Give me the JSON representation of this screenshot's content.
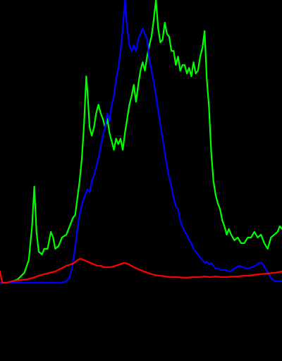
{
  "chart_data": {
    "type": "line",
    "title": "",
    "xlabel": "",
    "ylabel": "",
    "grid": false,
    "legend": "none",
    "background": "#000000",
    "xlim": [
      0,
      255
    ],
    "ylim": [
      0,
      1
    ],
    "series": [
      {
        "color": "#00ff00",
        "points": [
          [
            0,
            0.0
          ],
          [
            8,
            0.0
          ],
          [
            16,
            0.012
          ],
          [
            22,
            0.035
          ],
          [
            26,
            0.08
          ],
          [
            29,
            0.2
          ],
          [
            31,
            0.34
          ],
          [
            33,
            0.18
          ],
          [
            35,
            0.11
          ],
          [
            38,
            0.1
          ],
          [
            40,
            0.12
          ],
          [
            43,
            0.12
          ],
          [
            46,
            0.18
          ],
          [
            48,
            0.16
          ],
          [
            50,
            0.12
          ],
          [
            53,
            0.13
          ],
          [
            56,
            0.16
          ],
          [
            60,
            0.17
          ],
          [
            63,
            0.2
          ],
          [
            66,
            0.23
          ],
          [
            68,
            0.24
          ],
          [
            70,
            0.3
          ],
          [
            72,
            0.36
          ],
          [
            74,
            0.44
          ],
          [
            76,
            0.56
          ],
          [
            78,
            0.73
          ],
          [
            79,
            0.68
          ],
          [
            81,
            0.55
          ],
          [
            83,
            0.52
          ],
          [
            85,
            0.55
          ],
          [
            87,
            0.6
          ],
          [
            89,
            0.63
          ],
          [
            91,
            0.6
          ],
          [
            93,
            0.58
          ],
          [
            95,
            0.55
          ],
          [
            97,
            0.58
          ],
          [
            99,
            0.53
          ],
          [
            101,
            0.5
          ],
          [
            103,
            0.47
          ],
          [
            105,
            0.51
          ],
          [
            107,
            0.49
          ],
          [
            109,
            0.51
          ],
          [
            111,
            0.47
          ],
          [
            113,
            0.53
          ],
          [
            115,
            0.58
          ],
          [
            117,
            0.63
          ],
          [
            119,
            0.66
          ],
          [
            121,
            0.7
          ],
          [
            123,
            0.64
          ],
          [
            125,
            0.7
          ],
          [
            127,
            0.75
          ],
          [
            129,
            0.78
          ],
          [
            131,
            0.75
          ],
          [
            133,
            0.8
          ],
          [
            135,
            0.84
          ],
          [
            137,
            0.87
          ],
          [
            139,
            0.93
          ],
          [
            141,
            1.0
          ],
          [
            143,
            0.9
          ],
          [
            145,
            0.85
          ],
          [
            147,
            0.86
          ],
          [
            149,
            0.92
          ],
          [
            151,
            0.88
          ],
          [
            153,
            0.87
          ],
          [
            155,
            0.82
          ],
          [
            157,
            0.82
          ],
          [
            159,
            0.77
          ],
          [
            161,
            0.8
          ],
          [
            163,
            0.75
          ],
          [
            165,
            0.77
          ],
          [
            167,
            0.77
          ],
          [
            169,
            0.74
          ],
          [
            171,
            0.76
          ],
          [
            173,
            0.73
          ],
          [
            175,
            0.78
          ],
          [
            177,
            0.74
          ],
          [
            179,
            0.75
          ],
          [
            181,
            0.8
          ],
          [
            183,
            0.83
          ],
          [
            185,
            0.89
          ],
          [
            187,
            0.72
          ],
          [
            189,
            0.62
          ],
          [
            191,
            0.46
          ],
          [
            193,
            0.36
          ],
          [
            195,
            0.31
          ],
          [
            197,
            0.28
          ],
          [
            199,
            0.26
          ],
          [
            201,
            0.22
          ],
          [
            203,
            0.2
          ],
          [
            205,
            0.17
          ],
          [
            207,
            0.19
          ],
          [
            209,
            0.17
          ],
          [
            212,
            0.15
          ],
          [
            215,
            0.16
          ],
          [
            218,
            0.14
          ],
          [
            221,
            0.14
          ],
          [
            224,
            0.16
          ],
          [
            227,
            0.16
          ],
          [
            230,
            0.18
          ],
          [
            233,
            0.16
          ],
          [
            236,
            0.17
          ],
          [
            239,
            0.14
          ],
          [
            242,
            0.12
          ],
          [
            245,
            0.16
          ],
          [
            248,
            0.17
          ],
          [
            251,
            0.18
          ],
          [
            253,
            0.2
          ],
          [
            255,
            0.19
          ]
        ]
      },
      {
        "color": "#0000ff",
        "points": [
          [
            0,
            0.0
          ],
          [
            20,
            0.0
          ],
          [
            40,
            0.0
          ],
          [
            55,
            0.0
          ],
          [
            60,
            0.005
          ],
          [
            63,
            0.02
          ],
          [
            65,
            0.05
          ],
          [
            67,
            0.1
          ],
          [
            69,
            0.16
          ],
          [
            71,
            0.22
          ],
          [
            73,
            0.26
          ],
          [
            75,
            0.29
          ],
          [
            77,
            0.31
          ],
          [
            79,
            0.33
          ],
          [
            81,
            0.32
          ],
          [
            83,
            0.36
          ],
          [
            85,
            0.38
          ],
          [
            87,
            0.41
          ],
          [
            89,
            0.44
          ],
          [
            91,
            0.48
          ],
          [
            93,
            0.52
          ],
          [
            95,
            0.55
          ],
          [
            97,
            0.6
          ],
          [
            99,
            0.57
          ],
          [
            101,
            0.63
          ],
          [
            103,
            0.66
          ],
          [
            105,
            0.72
          ],
          [
            107,
            0.76
          ],
          [
            109,
            0.82
          ],
          [
            111,
            0.9
          ],
          [
            113,
            1.0
          ],
          [
            115,
            0.9
          ],
          [
            117,
            0.84
          ],
          [
            119,
            0.82
          ],
          [
            121,
            0.84
          ],
          [
            123,
            0.82
          ],
          [
            125,
            0.86
          ],
          [
            127,
            0.88
          ],
          [
            129,
            0.9
          ],
          [
            131,
            0.88
          ],
          [
            133,
            0.86
          ],
          [
            135,
            0.79
          ],
          [
            137,
            0.75
          ],
          [
            139,
            0.71
          ],
          [
            141,
            0.66
          ],
          [
            143,
            0.61
          ],
          [
            145,
            0.56
          ],
          [
            147,
            0.51
          ],
          [
            149,
            0.46
          ],
          [
            151,
            0.41
          ],
          [
            153,
            0.37
          ],
          [
            155,
            0.34
          ],
          [
            157,
            0.3
          ],
          [
            159,
            0.27
          ],
          [
            161,
            0.26
          ],
          [
            163,
            0.22
          ],
          [
            165,
            0.2
          ],
          [
            167,
            0.18
          ],
          [
            169,
            0.17
          ],
          [
            171,
            0.15
          ],
          [
            173,
            0.14
          ],
          [
            175,
            0.12
          ],
          [
            177,
            0.11
          ],
          [
            179,
            0.1
          ],
          [
            181,
            0.09
          ],
          [
            183,
            0.08
          ],
          [
            185,
            0.07
          ],
          [
            187,
            0.075
          ],
          [
            189,
            0.065
          ],
          [
            191,
            0.07
          ],
          [
            193,
            0.06
          ],
          [
            195,
            0.05
          ],
          [
            197,
            0.05
          ],
          [
            200,
            0.045
          ],
          [
            204,
            0.045
          ],
          [
            208,
            0.04
          ],
          [
            212,
            0.05
          ],
          [
            216,
            0.06
          ],
          [
            220,
            0.055
          ],
          [
            224,
            0.05
          ],
          [
            228,
            0.055
          ],
          [
            231,
            0.06
          ],
          [
            234,
            0.07
          ],
          [
            236,
            0.07
          ],
          [
            238,
            0.065
          ],
          [
            240,
            0.05
          ],
          [
            243,
            0.03
          ],
          [
            246,
            0.012
          ],
          [
            249,
            0.005
          ],
          [
            252,
            0.005
          ],
          [
            255,
            0.005
          ]
        ]
      },
      {
        "color": "#ff0000",
        "points": [
          [
            0,
            0.04
          ],
          [
            2,
            0.0
          ],
          [
            6,
            0.0
          ],
          [
            10,
            0.005
          ],
          [
            15,
            0.008
          ],
          [
            20,
            0.01
          ],
          [
            25,
            0.012
          ],
          [
            30,
            0.018
          ],
          [
            35,
            0.025
          ],
          [
            40,
            0.03
          ],
          [
            45,
            0.035
          ],
          [
            50,
            0.04
          ],
          [
            55,
            0.05
          ],
          [
            60,
            0.06
          ],
          [
            64,
            0.065
          ],
          [
            67,
            0.07
          ],
          [
            70,
            0.08
          ],
          [
            73,
            0.085
          ],
          [
            76,
            0.08
          ],
          [
            79,
            0.075
          ],
          [
            82,
            0.07
          ],
          [
            85,
            0.065
          ],
          [
            88,
            0.06
          ],
          [
            91,
            0.06
          ],
          [
            94,
            0.055
          ],
          [
            97,
            0.055
          ],
          [
            100,
            0.055
          ],
          [
            103,
            0.058
          ],
          [
            106,
            0.062
          ],
          [
            109,
            0.066
          ],
          [
            112,
            0.07
          ],
          [
            115,
            0.068
          ],
          [
            118,
            0.062
          ],
          [
            121,
            0.055
          ],
          [
            124,
            0.05
          ],
          [
            127,
            0.045
          ],
          [
            130,
            0.04
          ],
          [
            133,
            0.036
          ],
          [
            136,
            0.032
          ],
          [
            139,
            0.028
          ],
          [
            142,
            0.026
          ],
          [
            146,
            0.024
          ],
          [
            150,
            0.022
          ],
          [
            155,
            0.02
          ],
          [
            160,
            0.02
          ],
          [
            165,
            0.018
          ],
          [
            170,
            0.018
          ],
          [
            175,
            0.02
          ],
          [
            180,
            0.02
          ],
          [
            185,
            0.022
          ],
          [
            190,
            0.02
          ],
          [
            195,
            0.022
          ],
          [
            200,
            0.02
          ],
          [
            205,
            0.02
          ],
          [
            210,
            0.022
          ],
          [
            215,
            0.022
          ],
          [
            220,
            0.025
          ],
          [
            225,
            0.025
          ],
          [
            230,
            0.028
          ],
          [
            235,
            0.03
          ],
          [
            240,
            0.032
          ],
          [
            245,
            0.034
          ],
          [
            250,
            0.036
          ],
          [
            255,
            0.04
          ]
        ]
      }
    ]
  }
}
